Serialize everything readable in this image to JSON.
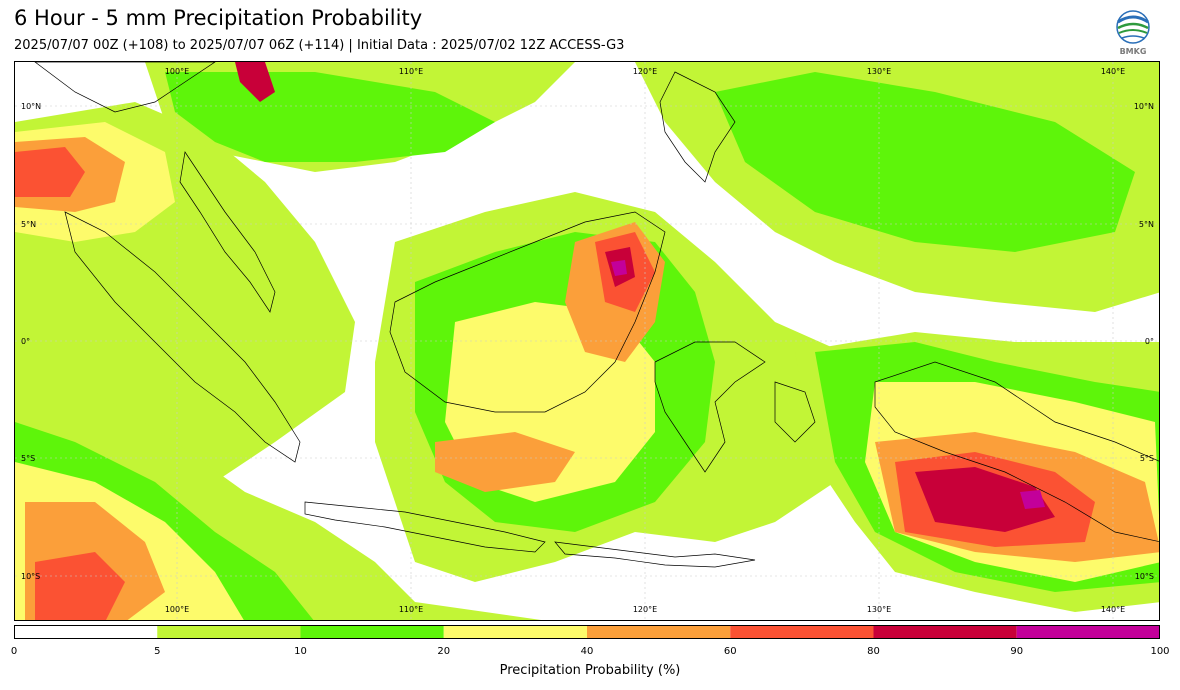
{
  "header": {
    "title": "6 Hour - 5 mm Precipitation Probability",
    "subtitle": "2025/07/07 00Z (+108) to 2025/07/07 06Z (+114) | Initial Data : 2025/07/02 12Z ACCESS-G3",
    "logo_text": "BMKG"
  },
  "map": {
    "lon_labels": [
      "100°E",
      "110°E",
      "120°E",
      "130°E",
      "140°E"
    ],
    "lat_labels_left": [
      "10°N",
      "5°N",
      "0°",
      "5°S",
      "10°S"
    ],
    "lat_labels_right": [
      "10°N",
      "5°N",
      "0°",
      "5°S",
      "10°S"
    ]
  },
  "colorbar": {
    "title": "Precipitation Probability (%)",
    "ticks": [
      "0",
      "5",
      "10",
      "20",
      "40",
      "60",
      "80",
      "90",
      "100"
    ],
    "colors": [
      "#ffffff",
      "#c2f536",
      "#5ef50a",
      "#fdfb6b",
      "#fb9f3a",
      "#fb5233",
      "#c80039",
      "#c3009a"
    ]
  },
  "colors": {
    "pale_green": "#c2f536",
    "green": "#5ef50a",
    "yellow": "#fdfb6b",
    "orange": "#fb9f3a",
    "red": "#fb5233",
    "crimson": "#c80039",
    "magenta": "#c3009a"
  }
}
